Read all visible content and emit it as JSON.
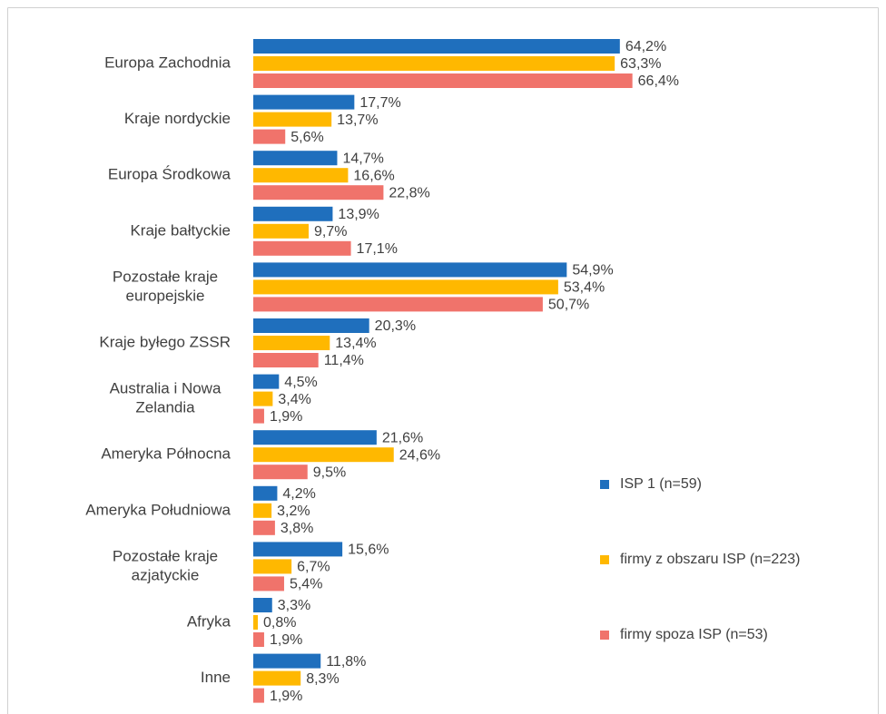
{
  "chart_data": {
    "type": "bar",
    "orientation": "horizontal",
    "categories": [
      "Europa Zachodnia",
      "Kraje nordyckie",
      "Europa Środkowa",
      "Kraje bałtyckie",
      "Pozostałe kraje europejskie",
      "Kraje byłego ZSSR",
      "Australia i Nowa Zelandia",
      "Ameryka Północna",
      "Ameryka Południowa",
      "Pozostałe kraje azjatyckie",
      "Afryka",
      "Inne"
    ],
    "series": [
      {
        "name": "ISP 1 (n=59)",
        "color": "#1f6fbd",
        "values": [
          64.2,
          17.7,
          14.7,
          13.9,
          54.9,
          20.3,
          4.5,
          21.6,
          4.2,
          15.6,
          3.3,
          11.8
        ],
        "value_labels": [
          "64,2%",
          "17,7%",
          "14,7%",
          "13,9%",
          "54,9%",
          "20,3%",
          "4,5%",
          "21,6%",
          "4,2%",
          "15,6%",
          "3,3%",
          "11,8%"
        ]
      },
      {
        "name": "firmy z obszaru ISP (n=223)",
        "color": "#ffb800",
        "values": [
          63.3,
          13.7,
          16.6,
          9.7,
          53.4,
          13.4,
          3.4,
          24.6,
          3.2,
          6.7,
          0.8,
          8.3
        ],
        "value_labels": [
          "63,3%",
          "13,7%",
          "16,6%",
          "9,7%",
          "53,4%",
          "13,4%",
          "3,4%",
          "24,6%",
          "3,2%",
          "6,7%",
          "0,8%",
          "8,3%"
        ]
      },
      {
        "name": "firmy spoza ISP (n=53)",
        "color": "#f0736b",
        "values": [
          66.4,
          5.6,
          22.8,
          17.1,
          50.7,
          11.4,
          1.9,
          9.5,
          3.8,
          5.4,
          1.9,
          1.9
        ],
        "value_labels": [
          "66,4%",
          "5,6%",
          "22,8%",
          "17,1%",
          "50,7%",
          "11,4%",
          "1,9%",
          "9,5%",
          "3,8%",
          "5,4%",
          "1,9%",
          "1,9%"
        ]
      }
    ],
    "legend": "right"
  }
}
